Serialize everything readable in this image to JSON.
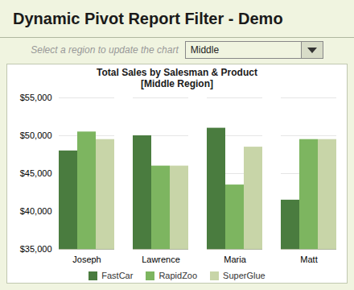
{
  "chart_data": {
    "type": "bar",
    "title": "Dynamic Pivot Report Filter - Demo",
    "annotations": [
      "Select a region to update the chart",
      "Middle"
    ],
    "subtitle": [
      "Total Sales by Salesman & Product",
      "[Middle Region]"
    ],
    "categories": [
      "Joseph",
      "Lawrence",
      "Maria",
      "Matt"
    ],
    "series": [
      {
        "name": "FastCar",
        "color": "#4a7c3f",
        "values": [
          48000,
          50000,
          51000,
          41500
        ]
      },
      {
        "name": "RapidZoo",
        "color": "#7db560",
        "values": [
          50500,
          46000,
          43500,
          49500
        ]
      },
      {
        "name": "SuperGlue",
        "color": "#c8d5a8",
        "values": [
          49500,
          46000,
          48500,
          49500
        ]
      }
    ],
    "ylim": [
      35000,
      55000
    ],
    "yticks": [
      {
        "value": 35000,
        "label": "$35,000"
      },
      {
        "value": 40000,
        "label": "$40,000"
      },
      {
        "value": 45000,
        "label": "$45,000"
      },
      {
        "value": 50000,
        "label": "$50,000"
      },
      {
        "value": 55000,
        "label": "$55,000"
      }
    ],
    "grid": true,
    "legend": "bottom"
  }
}
